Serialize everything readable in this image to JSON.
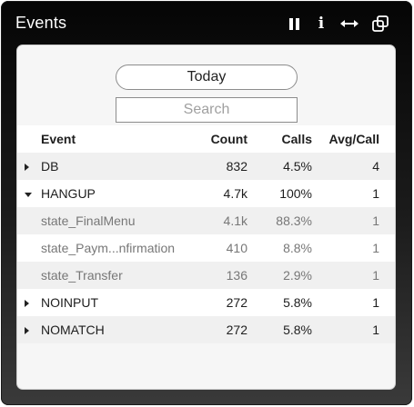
{
  "widget": {
    "title": "Events",
    "icons": [
      "pause-icon",
      "info-icon",
      "resize-horizontal-icon",
      "popout-icon"
    ]
  },
  "controls": {
    "date_label": "Today",
    "search_placeholder": "Search",
    "search_value": ""
  },
  "table": {
    "headers": {
      "event": "Event",
      "count": "Count",
      "calls": "Calls",
      "avg": "Avg/Call"
    },
    "rows": [
      {
        "event": "DB",
        "count": "832",
        "calls": "4.5%",
        "avg": "4",
        "state": "collapsed"
      },
      {
        "event": "HANGUP",
        "count": "4.7k",
        "calls": "100%",
        "avg": "1",
        "state": "expanded"
      },
      {
        "event": "state_FinalMenu",
        "count": "4.1k",
        "calls": "88.3%",
        "avg": "1",
        "state": "child"
      },
      {
        "event": "state_Paym...nfirmation",
        "count": "410",
        "calls": "8.8%",
        "avg": "1",
        "state": "child"
      },
      {
        "event": "state_Transfer",
        "count": "136",
        "calls": "2.9%",
        "avg": "1",
        "state": "child"
      },
      {
        "event": "NOINPUT",
        "count": "272",
        "calls": "5.8%",
        "avg": "1",
        "state": "collapsed"
      },
      {
        "event": "NOMATCH",
        "count": "272",
        "calls": "5.8%",
        "avg": "1",
        "state": "collapsed"
      }
    ]
  }
}
